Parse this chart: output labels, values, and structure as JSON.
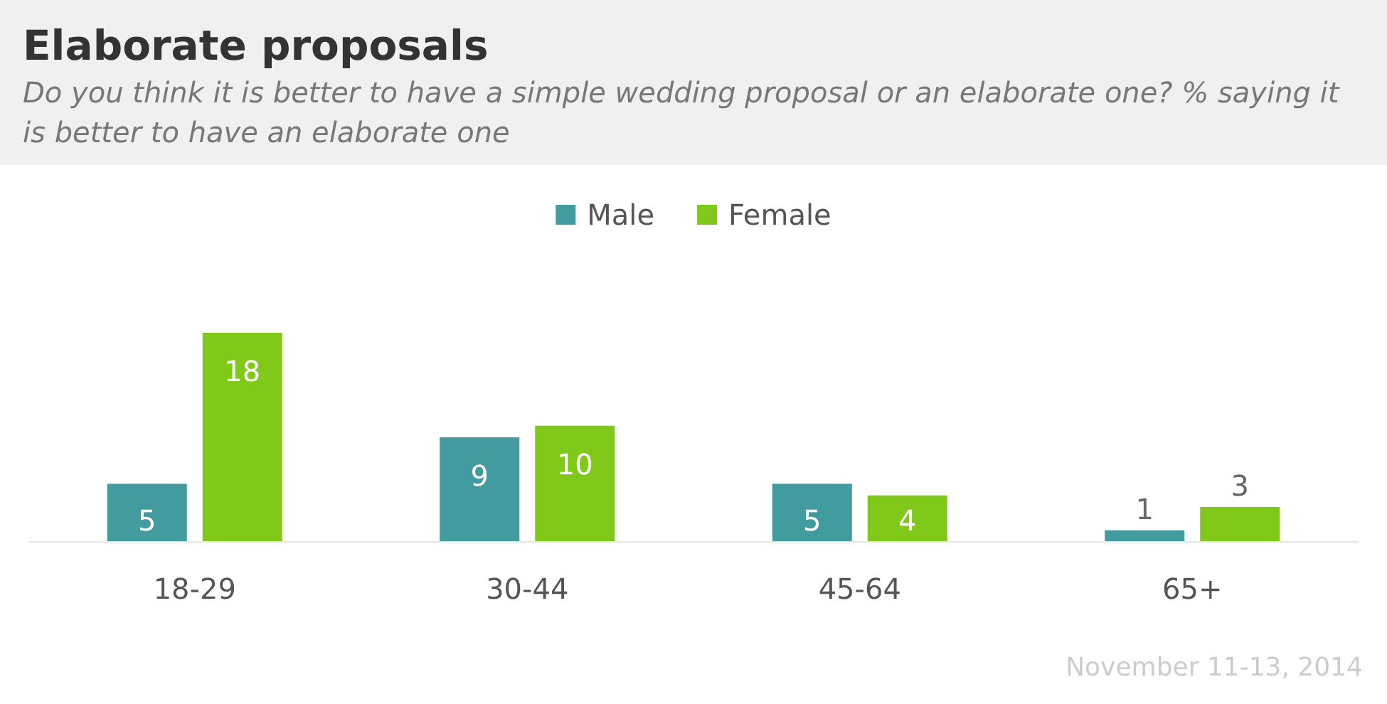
{
  "chart_data": {
    "type": "bar",
    "title": "Elaborate proposals",
    "subtitle": "Do you think it is better to have a simple wedding proposal or an elaborate one? % saying it is better to have an elaborate one",
    "categories": [
      "18-29",
      "30-44",
      "45-64",
      "65+"
    ],
    "series": [
      {
        "name": "Male",
        "color": "#429c9f",
        "values": [
          5,
          9,
          5,
          1
        ]
      },
      {
        "name": "Female",
        "color": "#80c91b",
        "values": [
          18,
          10,
          4,
          3
        ]
      }
    ],
    "data_labels": true,
    "legend": "top",
    "grid": false,
    "annotations": [
      "November 11-13, 2014"
    ]
  }
}
